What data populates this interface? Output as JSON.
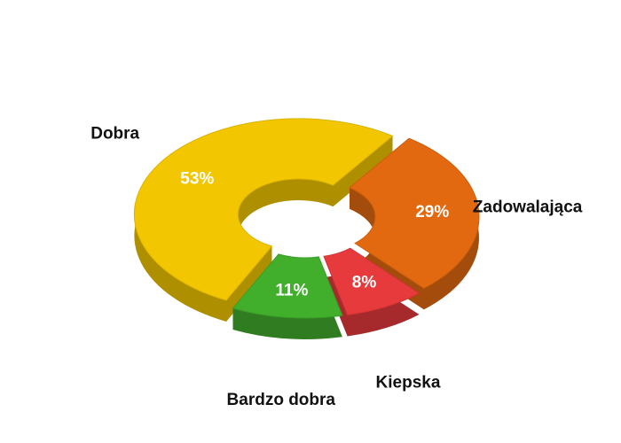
{
  "chart_data": {
    "type": "donut",
    "categories": [
      "Dobra",
      "Zadowalająca",
      "Kiepska",
      "Bardzo dobra"
    ],
    "values": [
      53,
      29,
      8,
      11
    ],
    "value_labels": [
      "53%",
      "29%",
      "8%",
      "11%"
    ],
    "colors": [
      "#f2c600",
      "#e2690f",
      "#e63a3c",
      "#41ae2c"
    ]
  }
}
